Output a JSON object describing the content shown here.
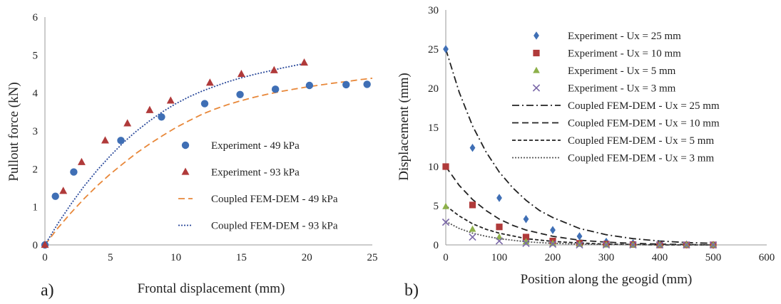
{
  "chart_data": [
    {
      "type": "scatter",
      "panel_label": "a)",
      "xlabel": "Frontal displacement (mm)",
      "ylabel": "Pullout force (kN)",
      "xlim": [
        0,
        25
      ],
      "ylim": [
        0,
        6
      ],
      "xticks": [
        "0",
        "5",
        "10",
        "15",
        "20",
        "25"
      ],
      "yticks": [
        "0",
        "1",
        "2",
        "3",
        "4",
        "5",
        "6"
      ],
      "grid": false,
      "legend_position": "right",
      "series": [
        {
          "name": "Experiment - 49 kPa",
          "kind": "marker",
          "marker": "circle",
          "color": "#3f6fb5",
          "points": [
            [
              0,
              0
            ],
            [
              0.8,
              1.28
            ],
            [
              2.2,
              1.92
            ],
            [
              5.8,
              2.75
            ],
            [
              8.9,
              3.37
            ],
            [
              12.2,
              3.72
            ],
            [
              14.9,
              3.96
            ],
            [
              17.6,
              4.1
            ],
            [
              20.2,
              4.2
            ],
            [
              23,
              4.22
            ],
            [
              24.6,
              4.23
            ]
          ]
        },
        {
          "name": "Experiment - 93 kPa",
          "kind": "marker",
          "marker": "triangle",
          "color": "#b03a3a",
          "points": [
            [
              0,
              0
            ],
            [
              1.4,
              1.42
            ],
            [
              2.8,
              2.18
            ],
            [
              4.6,
              2.75
            ],
            [
              6.3,
              3.2
            ],
            [
              8,
              3.55
            ],
            [
              9.6,
              3.8
            ],
            [
              12.6,
              4.27
            ],
            [
              15,
              4.5
            ],
            [
              17.5,
              4.6
            ],
            [
              19.8,
              4.8
            ]
          ]
        },
        {
          "name": "Coupled FEM-DEM - 49 kPa",
          "kind": "line",
          "dash": "dashed",
          "color": "#e8883a",
          "points": [
            [
              0,
              0
            ],
            [
              1,
              0.45
            ],
            [
              2,
              0.85
            ],
            [
              3,
              1.22
            ],
            [
              4,
              1.56
            ],
            [
              5,
              1.87
            ],
            [
              6,
              2.15
            ],
            [
              7,
              2.42
            ],
            [
              8,
              2.66
            ],
            [
              9,
              2.88
            ],
            [
              10,
              3.09
            ],
            [
              11,
              3.27
            ],
            [
              12,
              3.44
            ],
            [
              13,
              3.58
            ],
            [
              14,
              3.7
            ],
            [
              15,
              3.8
            ],
            [
              16,
              3.89
            ],
            [
              17,
              3.97
            ],
            [
              18,
              4.04
            ],
            [
              19,
              4.1
            ],
            [
              20,
              4.16
            ],
            [
              21,
              4.21
            ],
            [
              22,
              4.26
            ],
            [
              23,
              4.3
            ],
            [
              24,
              4.35
            ],
            [
              25,
              4.39
            ]
          ]
        },
        {
          "name": "Coupled FEM-DEM - 93 kPa",
          "kind": "line",
          "dash": "dotted",
          "color": "#2b4a9b",
          "points": [
            [
              0,
              0
            ],
            [
              1,
              0.57
            ],
            [
              2,
              1.08
            ],
            [
              3,
              1.55
            ],
            [
              4,
              1.97
            ],
            [
              5,
              2.35
            ],
            [
              6,
              2.7
            ],
            [
              7,
              3.0
            ],
            [
              8,
              3.27
            ],
            [
              9,
              3.51
            ],
            [
              10,
              3.72
            ],
            [
              11,
              3.9
            ],
            [
              12,
              4.05
            ],
            [
              13,
              4.18
            ],
            [
              14,
              4.3
            ],
            [
              15,
              4.4
            ],
            [
              16,
              4.49
            ],
            [
              17,
              4.57
            ],
            [
              18,
              4.65
            ],
            [
              19,
              4.72
            ],
            [
              20,
              4.79
            ]
          ]
        }
      ]
    },
    {
      "type": "scatter",
      "panel_label": "b)",
      "xlabel": "Position along the geogid (mm)",
      "ylabel": "Displacement (mm)",
      "xlim": [
        0,
        600
      ],
      "ylim": [
        0,
        30
      ],
      "xticks": [
        "0",
        "100",
        "200",
        "300",
        "400",
        "500",
        "600"
      ],
      "yticks": [
        "0",
        "5",
        "10",
        "15",
        "20",
        "25",
        "30"
      ],
      "grid": false,
      "legend_position": "top-right",
      "series": [
        {
          "name": "Experiment - Ux = 25 mm",
          "kind": "marker",
          "marker": "diamond",
          "color": "#3f6fb5",
          "points": [
            [
              0,
              25
            ],
            [
              50,
              12.4
            ],
            [
              100,
              6
            ],
            [
              150,
              3.3
            ],
            [
              200,
              1.9
            ],
            [
              250,
              1.1
            ],
            [
              300,
              0.4
            ],
            [
              350,
              0.2
            ],
            [
              400,
              0.1
            ],
            [
              450,
              0.05
            ],
            [
              500,
              0
            ]
          ]
        },
        {
          "name": "Experiment - Ux = 10 mm",
          "kind": "marker",
          "marker": "square",
          "color": "#b03a3a",
          "points": [
            [
              0,
              10
            ],
            [
              50,
              5.1
            ],
            [
              100,
              2.3
            ],
            [
              150,
              1.0
            ],
            [
              200,
              0.5
            ],
            [
              250,
              0.2
            ],
            [
              300,
              0.1
            ],
            [
              350,
              0.05
            ],
            [
              400,
              0
            ],
            [
              450,
              0
            ],
            [
              500,
              0
            ]
          ]
        },
        {
          "name": "Experiment - Ux = 5 mm",
          "kind": "marker",
          "marker": "triangle",
          "color": "#8db04a",
          "points": [
            [
              0,
              4.9
            ],
            [
              50,
              2.0
            ],
            [
              100,
              1.0
            ],
            [
              150,
              0.4
            ],
            [
              200,
              0.2
            ],
            [
              250,
              0.1
            ],
            [
              300,
              0
            ],
            [
              350,
              0
            ],
            [
              400,
              0
            ],
            [
              450,
              0
            ],
            [
              500,
              0
            ]
          ]
        },
        {
          "name": "Experiment - Ux = 3 mm",
          "kind": "marker",
          "marker": "cross",
          "color": "#7b68a8",
          "points": [
            [
              0,
              2.9
            ],
            [
              50,
              1.0
            ],
            [
              100,
              0.5
            ],
            [
              150,
              0.2
            ],
            [
              200,
              0.1
            ],
            [
              250,
              0
            ],
            [
              300,
              0
            ],
            [
              350,
              0
            ],
            [
              400,
              0
            ],
            [
              450,
              0
            ],
            [
              500,
              0
            ]
          ]
        },
        {
          "name": "Coupled FEM-DEM - Ux = 25 mm",
          "kind": "line",
          "dash": "dashdot",
          "color": "#222222",
          "points": [
            [
              0,
              25
            ],
            [
              25,
              19.5
            ],
            [
              50,
              15.2
            ],
            [
              75,
              11.9
            ],
            [
              100,
              9.3
            ],
            [
              125,
              7.3
            ],
            [
              150,
              5.7
            ],
            [
              175,
              4.4
            ],
            [
              200,
              3.5
            ],
            [
              250,
              2.1
            ],
            [
              300,
              1.3
            ],
            [
              350,
              0.8
            ],
            [
              400,
              0.5
            ],
            [
              450,
              0.3
            ],
            [
              500,
              0.2
            ]
          ]
        },
        {
          "name": "Coupled FEM-DEM - Ux = 10 mm",
          "kind": "line",
          "dash": "dashed",
          "color": "#222222",
          "points": [
            [
              0,
              10
            ],
            [
              25,
              7.6
            ],
            [
              50,
              5.8
            ],
            [
              75,
              4.4
            ],
            [
              100,
              3.3
            ],
            [
              125,
              2.5
            ],
            [
              150,
              1.9
            ],
            [
              200,
              1.1
            ],
            [
              250,
              0.6
            ],
            [
              300,
              0.35
            ],
            [
              350,
              0.2
            ],
            [
              400,
              0.1
            ],
            [
              450,
              0.05
            ],
            [
              500,
              0
            ]
          ]
        },
        {
          "name": "Coupled FEM-DEM - Ux = 5 mm",
          "kind": "line",
          "dash": "shortdash",
          "color": "#222222",
          "points": [
            [
              0,
              5
            ],
            [
              25,
              3.7
            ],
            [
              50,
              2.7
            ],
            [
              75,
              2.0
            ],
            [
              100,
              1.5
            ],
            [
              150,
              0.8
            ],
            [
              200,
              0.45
            ],
            [
              250,
              0.25
            ],
            [
              300,
              0.1
            ],
            [
              350,
              0.05
            ],
            [
              400,
              0
            ],
            [
              500,
              0
            ]
          ]
        },
        {
          "name": "Coupled FEM-DEM - Ux = 3 mm",
          "kind": "line",
          "dash": "dotted",
          "color": "#555555",
          "points": [
            [
              0,
              3
            ],
            [
              25,
              2.1
            ],
            [
              50,
              1.5
            ],
            [
              75,
              1.1
            ],
            [
              100,
              0.8
            ],
            [
              150,
              0.4
            ],
            [
              200,
              0.2
            ],
            [
              250,
              0.1
            ],
            [
              300,
              0.05
            ],
            [
              400,
              0
            ],
            [
              500,
              0
            ]
          ]
        }
      ]
    }
  ]
}
